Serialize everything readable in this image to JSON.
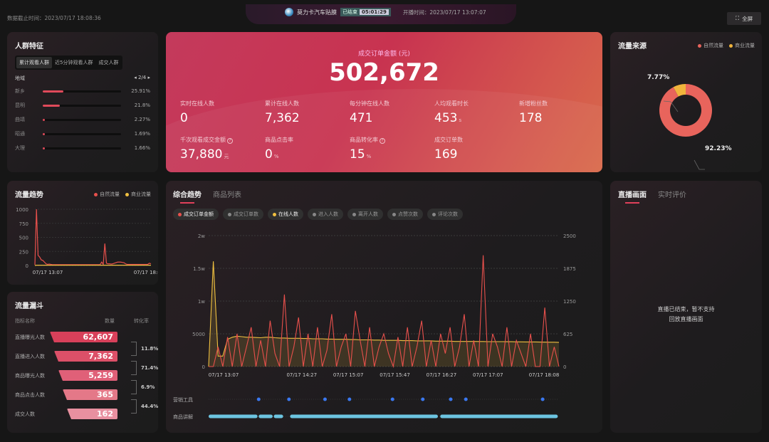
{
  "header": {
    "deadline": "数据截止时间：2023/07/17 18:08:36",
    "shop_name": "莫力卡汽车贴膜",
    "status": "已结束",
    "duration": "05:01:29",
    "start_time": "开播时间：2023/07/17 13:07:07",
    "fullscreen": "全屏"
  },
  "crowd": {
    "title": "人群特征",
    "tabs": [
      "累计观看人群",
      "近5分钟观看人群",
      "成交人群"
    ],
    "active_tab": 0,
    "region_label": "地域",
    "page": "2/4",
    "rows": [
      {
        "name": "新乡",
        "pct": "25.91%",
        "value": 25.91
      },
      {
        "name": "昆明",
        "pct": "21.8%",
        "value": 21.8
      },
      {
        "name": "曲靖",
        "pct": "2.27%",
        "value": 2.27
      },
      {
        "name": "昭通",
        "pct": "1.69%",
        "value": 1.69
      },
      {
        "name": "大理",
        "pct": "1.66%",
        "value": 1.66
      }
    ]
  },
  "hero": {
    "title": "成交订单金额 (元)",
    "value": "502,672",
    "kpis": [
      {
        "label": "实时在线人数",
        "value": "0",
        "unit": ""
      },
      {
        "label": "累计在线人数",
        "value": "7,362",
        "unit": ""
      },
      {
        "label": "每分钟在线人数",
        "value": "471",
        "unit": ""
      },
      {
        "label": "人均观看时长",
        "value": "453",
        "unit": "s"
      },
      {
        "label": "新增粉丝数",
        "value": "178",
        "unit": ""
      },
      {
        "label": "千次观看成交金额",
        "value": "37,880",
        "unit": "元",
        "help": true
      },
      {
        "label": "商品点击率",
        "value": "0",
        "unit": "%"
      },
      {
        "label": "商品转化率",
        "value": "15",
        "unit": "%",
        "help": true
      },
      {
        "label": "成交订单数",
        "value": "169",
        "unit": ""
      }
    ]
  },
  "traffic_source": {
    "title": "流量来源",
    "legend": [
      "自然流量",
      "商业流量"
    ],
    "colors": [
      "#e8645c",
      "#f0b43c"
    ],
    "labels": [
      "92.23%",
      "7.77%"
    ]
  },
  "traffic_trend": {
    "title": "流量趋势",
    "legend": [
      "自然流量",
      "商业流量"
    ]
  },
  "funnel": {
    "title": "流量漏斗",
    "headers": [
      "指标名称",
      "数量",
      "转化率"
    ],
    "rows": [
      {
        "name": "直播曝光人数",
        "value": "62,607",
        "color": "#d8405a"
      },
      {
        "name": "直播进入人数",
        "value": "7,362",
        "color": "#dc5068"
      },
      {
        "name": "商品曝光人数",
        "value": "5,259",
        "color": "#e06078"
      },
      {
        "name": "商品点击人数",
        "value": "365",
        "color": "#e47888"
      },
      {
        "name": "成交人数",
        "value": "162",
        "color": "#e890a0"
      }
    ],
    "conversions": [
      "11.8%",
      "71.4%",
      "6.9%",
      "44.4%"
    ]
  },
  "trend": {
    "tabs": [
      "综合趋势",
      "商品列表"
    ],
    "active_tab": 0,
    "chips": [
      {
        "label": "成交订单金额",
        "color": "#e8504c",
        "on": true
      },
      {
        "label": "成交订单数",
        "color": "#888",
        "on": false
      },
      {
        "label": "在线人数",
        "color": "#f0c040",
        "on": true
      },
      {
        "label": "进入人数",
        "color": "#888",
        "on": false
      },
      {
        "label": "离开人数",
        "color": "#888",
        "on": false
      },
      {
        "label": "点赞次数",
        "color": "#888",
        "on": false
      },
      {
        "label": "评论次数",
        "color": "#888",
        "on": false
      }
    ],
    "timeline_labels": [
      "营销工具",
      "商品讲解"
    ],
    "marketing_times": [
      "13:50",
      "14:16",
      "14:47",
      "15:08",
      "15:45",
      "16:11",
      "16:35",
      "16:48",
      "17:54"
    ],
    "explain_segments": [
      [
        "13:07",
        "13:49"
      ],
      [
        "13:50",
        "14:02"
      ],
      [
        "14:03",
        "14:11"
      ],
      [
        "14:17",
        "16:24"
      ],
      [
        "16:26",
        "18:07"
      ]
    ]
  },
  "live": {
    "tabs": [
      "直播画面",
      "实时评价"
    ],
    "active_tab": 0,
    "message_line1": "直播已结束，暂不支持",
    "message_line2": "回放直播画面"
  },
  "chart_data": [
    {
      "type": "line",
      "title": "流量趋势",
      "x_range": [
        "07/17 13:07",
        "07/17 18:08"
      ],
      "x_ticks": [
        "07/17 13:07",
        "07/17 18:08"
      ],
      "yticks": [
        "0",
        "250",
        "500",
        "750",
        "1000"
      ],
      "ylim": [
        0,
        1000
      ],
      "grid": true,
      "legend": "top-right",
      "series": [
        {
          "name": "自然流量",
          "color": "#e8504c",
          "values": [
            10,
            1000,
            180,
            150,
            100,
            90,
            60,
            30,
            20,
            25,
            20,
            15,
            15,
            15,
            15,
            15,
            15,
            15,
            15,
            15,
            15,
            15,
            15,
            15,
            15,
            15,
            15,
            15,
            15,
            15,
            15,
            15,
            15,
            15,
            15,
            15,
            15,
            15,
            15,
            15,
            15,
            15,
            60,
            20,
            390,
            40,
            30,
            30,
            25,
            30,
            40,
            50,
            60,
            60,
            60,
            55,
            50,
            30,
            20,
            20,
            20,
            20,
            20,
            20,
            20,
            20,
            20,
            20,
            20,
            20,
            20,
            20,
            40,
            30
          ]
        },
        {
          "name": "商业流量",
          "color": "#f0c040",
          "values": [
            0,
            5,
            5,
            5,
            5,
            5,
            5,
            5,
            5,
            5,
            5,
            5,
            5,
            5,
            5,
            5,
            5,
            5,
            5,
            5,
            5,
            5,
            5,
            5,
            5,
            5,
            5,
            5,
            5,
            5,
            5,
            5,
            5,
            5,
            5,
            5,
            5,
            5,
            5,
            5,
            5,
            5,
            5,
            5,
            5,
            5,
            5,
            5,
            5,
            5,
            5,
            5,
            5,
            5,
            5,
            5,
            5,
            5,
            5,
            5,
            5,
            5,
            5,
            5,
            5,
            5,
            5,
            5,
            5,
            5,
            5,
            5,
            5,
            5
          ]
        }
      ]
    },
    {
      "type": "line",
      "x_range": [
        "07/17 13:07",
        "07/17 18:08"
      ],
      "x_ticks": [
        "07/17 13:07",
        "07/17 14:27",
        "07/17 15:07",
        "07/17 15:47",
        "07/17 16:27",
        "07/17 17:07",
        "07/17 18:08"
      ],
      "yticks_left": [
        "0",
        "5000",
        "1w",
        "1.5w",
        "2w"
      ],
      "ylim_left": [
        0,
        20000
      ],
      "yticks_right": [
        "0",
        "625",
        "1250",
        "1875",
        "2500"
      ],
      "ylim_right": [
        0,
        2500
      ],
      "grid": true,
      "series": [
        {
          "name": "成交订单金额",
          "color": "#e8504c",
          "axis": "left",
          "values": [
            0,
            0,
            3000,
            0,
            4500,
            0,
            5000,
            0,
            3000,
            6000,
            0,
            4000,
            0,
            7000,
            2000,
            0,
            11000,
            0,
            3000,
            7500,
            0,
            5000,
            0,
            6000,
            0,
            2500,
            8000,
            0,
            3000,
            5000,
            0,
            8500,
            4000,
            0,
            6000,
            0,
            3000,
            5000,
            2000,
            0,
            4500,
            0,
            6000,
            0,
            3000,
            7000,
            0,
            4000,
            0,
            5000,
            2000,
            6000,
            0,
            3000,
            8000,
            0,
            4000,
            0,
            17000,
            0,
            5000,
            3000,
            0,
            6000,
            0,
            4000,
            2000,
            0,
            5000,
            0,
            0,
            9000,
            0,
            3000,
            0
          ]
        },
        {
          "name": "在线人数",
          "color": "#f0c040",
          "axis": "right",
          "values": [
            0,
            2010,
            200,
            200,
            520,
            560,
            580,
            570,
            560,
            560,
            555,
            550,
            560,
            560,
            550,
            545,
            545,
            540,
            540,
            540,
            535,
            535,
            530,
            530,
            530,
            525,
            525,
            520,
            520,
            520,
            515,
            515,
            510,
            510,
            510,
            505,
            505,
            500,
            500,
            500,
            500,
            495,
            495,
            495,
            490,
            490,
            490,
            490,
            485,
            485,
            485,
            485,
            480,
            480,
            480,
            480,
            480,
            478,
            478,
            476,
            476,
            475,
            475,
            474,
            474,
            472,
            472,
            470,
            470,
            470,
            468,
            466,
            465,
            464,
            460
          ]
        }
      ]
    },
    {
      "type": "pie",
      "title": "流量来源",
      "categories": [
        "自然流量",
        "商业流量"
      ],
      "values": [
        92.23,
        7.77
      ],
      "legend": "top-right"
    }
  ]
}
